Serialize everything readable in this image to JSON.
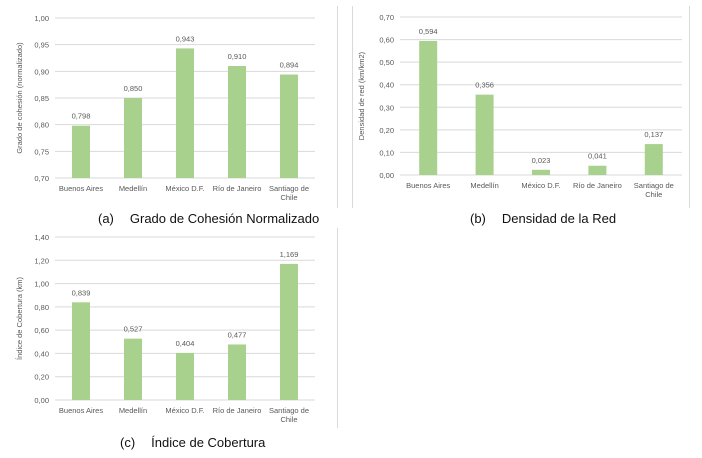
{
  "colors": {
    "bar": "#a9d18e",
    "grid": "#d9d9d9",
    "text": "#595959"
  },
  "captions": [
    {
      "tag": "(a)",
      "text": "Grado de Cohesión Normalizado"
    },
    {
      "tag": "(b)",
      "text": "Densidad de la Red"
    },
    {
      "tag": "(c)",
      "text": "Índice de Cobertura"
    }
  ],
  "chart_data": [
    {
      "type": "bar",
      "title": "",
      "xlabel": "",
      "ylabel": "Grado de cohesión (normalizado)",
      "categories": [
        "Buenos Aires",
        "Medellín",
        "México D.F.",
        "Río de Janeiro",
        "Santiago de Chile"
      ],
      "values": [
        0.798,
        0.85,
        0.943,
        0.91,
        0.894
      ],
      "value_labels": [
        "0,798",
        "0,850",
        "0,943",
        "0,910",
        "0,894"
      ],
      "ylim": [
        0.7,
        1.0
      ],
      "yticks": [
        "0,70",
        "0,75",
        "0,80",
        "0,85",
        "0,90",
        "0,95",
        "1,00"
      ],
      "grid": true,
      "legend": "none"
    },
    {
      "type": "bar",
      "title": "",
      "xlabel": "",
      "ylabel": "Densidad de red (km/km2)",
      "categories": [
        "Buenos Aires",
        "Medellín",
        "México D.F.",
        "Río de Janeiro",
        "Santiago de Chile"
      ],
      "values": [
        0.594,
        0.356,
        0.023,
        0.041,
        0.137
      ],
      "value_labels": [
        "0,594",
        "0,356",
        "0,023",
        "0,041",
        "0,137"
      ],
      "ylim": [
        0.0,
        0.7
      ],
      "yticks": [
        "0,00",
        "0,10",
        "0,20",
        "0,30",
        "0,40",
        "0,50",
        "0,60",
        "0,70"
      ],
      "grid": true,
      "legend": "none"
    },
    {
      "type": "bar",
      "title": "",
      "xlabel": "",
      "ylabel": "Índice de Cobertura (km)",
      "categories": [
        "Buenos Aires",
        "Medellín",
        "México D.F.",
        "Río de Janeiro",
        "Santiago de Chile"
      ],
      "values": [
        0.839,
        0.527,
        0.404,
        0.477,
        1.169
      ],
      "value_labels": [
        "0,839",
        "0,527",
        "0,404",
        "0,477",
        "1,169"
      ],
      "ylim": [
        0.0,
        1.4
      ],
      "yticks": [
        "0,00",
        "0,20",
        "0,40",
        "0,60",
        "0,80",
        "1,00",
        "1,20",
        "1,40"
      ],
      "grid": true,
      "legend": "none"
    }
  ]
}
